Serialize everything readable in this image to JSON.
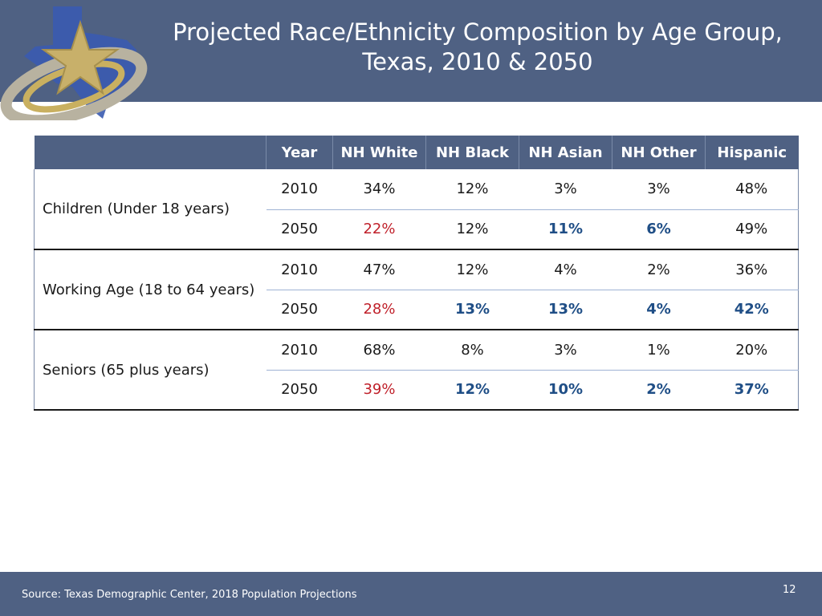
{
  "slide": {
    "title_line1": "Projected Race/Ethnicity Composition by Age Group,",
    "title_line2": "Texas, 2010 & 2050",
    "source": "Source: Texas Demographic Center, 2018 Population Projections",
    "page_number": "12",
    "colors": {
      "header": "#4f6183",
      "increase_blue": "#1f4e86",
      "decrease_red": "#c0202a"
    }
  },
  "table": {
    "headers": [
      "Year",
      "NH White",
      "NH Black",
      "NH Asian",
      "NH Other",
      "Hispanic"
    ],
    "groups": [
      {
        "label": "Children (Under 18 years)",
        "rows": [
          {
            "year": "2010",
            "values": [
              "34%",
              "12%",
              "3%",
              "3%",
              "48%"
            ]
          },
          {
            "year": "2050",
            "values": [
              "22%",
              "12%",
              "11%",
              "6%",
              "49%"
            ]
          }
        ]
      },
      {
        "label": "Working Age (18 to 64 years)",
        "rows": [
          {
            "year": "2010",
            "values": [
              "47%",
              "12%",
              "4%",
              "2%",
              "36%"
            ]
          },
          {
            "year": "2050",
            "values": [
              "28%",
              "13%",
              "13%",
              "4%",
              "42%"
            ]
          }
        ]
      },
      {
        "label": "Seniors (65 plus years)",
        "rows": [
          {
            "year": "2010",
            "values": [
              "68%",
              "8%",
              "3%",
              "1%",
              "20%"
            ]
          },
          {
            "year": "2050",
            "values": [
              "39%",
              "12%",
              "10%",
              "2%",
              "37%"
            ]
          }
        ]
      }
    ]
  }
}
